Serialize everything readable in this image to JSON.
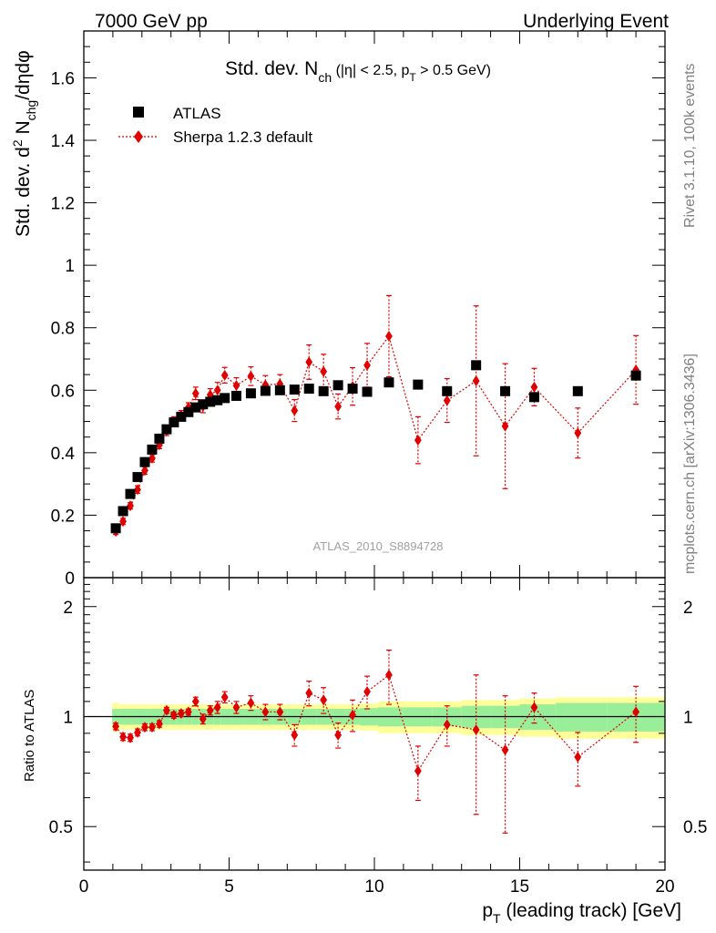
{
  "header": {
    "left": "7000 GeV pp",
    "right": "Underlying Event"
  },
  "side": {
    "rivet": "Rivet 3.1.10,  100k events",
    "mcplots": "mcplots.cern.ch [arXiv:1306.3436]"
  },
  "chart_data": {
    "type": "scatter",
    "title": "Std. dev. N_ch (|η| < 2.5, p_T > 0.5 GeV)",
    "title_parts": {
      "main": "Std. dev. N",
      "main_sub": "ch",
      "cond1": " (|η| < 2.5, p",
      "cond_sub": "T",
      "cond2": " > 0.5 GeV)"
    },
    "ylabel_parts": {
      "a": "Std. dev. d",
      "sup": "2",
      "b": " N",
      "sub": "chg",
      "c": "/dηdφ"
    },
    "xlabel_parts": {
      "a": "p",
      "sub": "T",
      "b": " (leading track) [GeV]"
    },
    "ratio_ylabel": "Ratio to ATLAS",
    "analysis": "ATLAS_2010_S8894728",
    "xlim": [
      0,
      20
    ],
    "ylim": [
      0,
      1.75
    ],
    "ratio_ylim": [
      0.38,
      2.4
    ],
    "x_ticks": [
      "0",
      "5",
      "10",
      "15",
      "20"
    ],
    "y_ticks": [
      "0",
      "0.2",
      "0.4",
      "0.6",
      "0.8",
      "1",
      "1.2",
      "1.4",
      "1.6"
    ],
    "ratio_ticks": [
      "0.5",
      "1",
      "2"
    ],
    "legend": {
      "data": "ATLAS",
      "mc": "Sherpa 1.2.3 default"
    },
    "data_x": [
      1.1,
      1.35,
      1.6,
      1.85,
      2.1,
      2.35,
      2.6,
      2.85,
      3.1,
      3.35,
      3.6,
      3.85,
      4.1,
      4.35,
      4.6,
      4.85,
      5.25,
      5.75,
      6.25,
      6.75,
      7.25,
      7.75,
      8.25,
      8.75,
      9.25,
      9.75,
      10.5,
      11.5,
      12.5,
      13.5,
      14.5,
      15.5,
      17.0,
      19.0
    ],
    "data_y": [
      0.158,
      0.213,
      0.268,
      0.322,
      0.37,
      0.41,
      0.445,
      0.475,
      0.497,
      0.515,
      0.53,
      0.545,
      0.555,
      0.563,
      0.568,
      0.575,
      0.582,
      0.59,
      0.598,
      0.6,
      0.602,
      0.605,
      0.597,
      0.616,
      0.605,
      0.595,
      0.625,
      0.618,
      0.597,
      0.68,
      0.597,
      0.578,
      0.597,
      0.647
    ],
    "data_band_inner": [
      0.05,
      0.05,
      0.05,
      0.05,
      0.05,
      0.05,
      0.05,
      0.05,
      0.05,
      0.05,
      0.05,
      0.05,
      0.05,
      0.05,
      0.05,
      0.05,
      0.05,
      0.05,
      0.05,
      0.05,
      0.05,
      0.05,
      0.05,
      0.05,
      0.05,
      0.055,
      0.06,
      0.06,
      0.06,
      0.07,
      0.07,
      0.08,
      0.09,
      0.09
    ],
    "data_band_outer": [
      0.09,
      0.08,
      0.08,
      0.08,
      0.08,
      0.08,
      0.08,
      0.08,
      0.08,
      0.08,
      0.08,
      0.08,
      0.08,
      0.08,
      0.08,
      0.08,
      0.08,
      0.08,
      0.08,
      0.08,
      0.08,
      0.08,
      0.08,
      0.08,
      0.08,
      0.085,
      0.1,
      0.1,
      0.1,
      0.11,
      0.11,
      0.12,
      0.13,
      0.13
    ],
    "series": [
      {
        "name": "Sherpa 1.2.3 default",
        "x": [
          1.1,
          1.35,
          1.6,
          1.85,
          2.1,
          2.35,
          2.6,
          2.85,
          3.1,
          3.35,
          3.6,
          3.85,
          4.1,
          4.35,
          4.6,
          4.85,
          5.25,
          5.75,
          6.25,
          6.75,
          7.25,
          7.75,
          8.25,
          8.75,
          9.25,
          9.75,
          10.5,
          11.5,
          12.5,
          13.5,
          14.5,
          15.5,
          17.0,
          19.0
        ],
        "y": [
          0.148,
          0.18,
          0.23,
          0.282,
          0.343,
          0.382,
          0.425,
          0.47,
          0.5,
          0.52,
          0.545,
          0.59,
          0.548,
          0.585,
          0.6,
          0.648,
          0.615,
          0.645,
          0.617,
          0.62,
          0.535,
          0.69,
          0.66,
          0.548,
          0.612,
          0.68,
          0.773,
          0.44,
          0.567,
          0.63,
          0.485,
          0.61,
          0.463,
          0.665
        ],
        "yerr": [
          0.01,
          0.01,
          0.01,
          0.012,
          0.012,
          0.012,
          0.012,
          0.015,
          0.015,
          0.015,
          0.015,
          0.02,
          0.02,
          0.02,
          0.025,
          0.025,
          0.025,
          0.03,
          0.03,
          0.03,
          0.035,
          0.055,
          0.055,
          0.04,
          0.06,
          0.07,
          0.13,
          0.075,
          0.07,
          0.24,
          0.2,
          0.06,
          0.08,
          0.11
        ],
        "ratio": [
          0.94,
          0.88,
          0.875,
          0.905,
          0.935,
          0.935,
          0.955,
          1.04,
          1.01,
          1.02,
          1.03,
          1.1,
          0.985,
          1.04,
          1.06,
          1.13,
          1.06,
          1.09,
          1.03,
          1.03,
          0.89,
          1.16,
          1.11,
          0.89,
          1.01,
          1.17,
          1.3,
          0.71,
          0.95,
          0.92,
          0.81,
          1.06,
          0.775,
          1.03
        ],
        "ratio_err": [
          0.02,
          0.02,
          0.02,
          0.02,
          0.02,
          0.02,
          0.02,
          0.02,
          0.02,
          0.02,
          0.02,
          0.03,
          0.03,
          0.03,
          0.04,
          0.04,
          0.04,
          0.05,
          0.05,
          0.05,
          0.06,
          0.09,
          0.09,
          0.07,
          0.1,
          0.12,
          0.22,
          0.12,
          0.12,
          0.38,
          0.33,
          0.1,
          0.13,
          0.18
        ]
      }
    ]
  }
}
